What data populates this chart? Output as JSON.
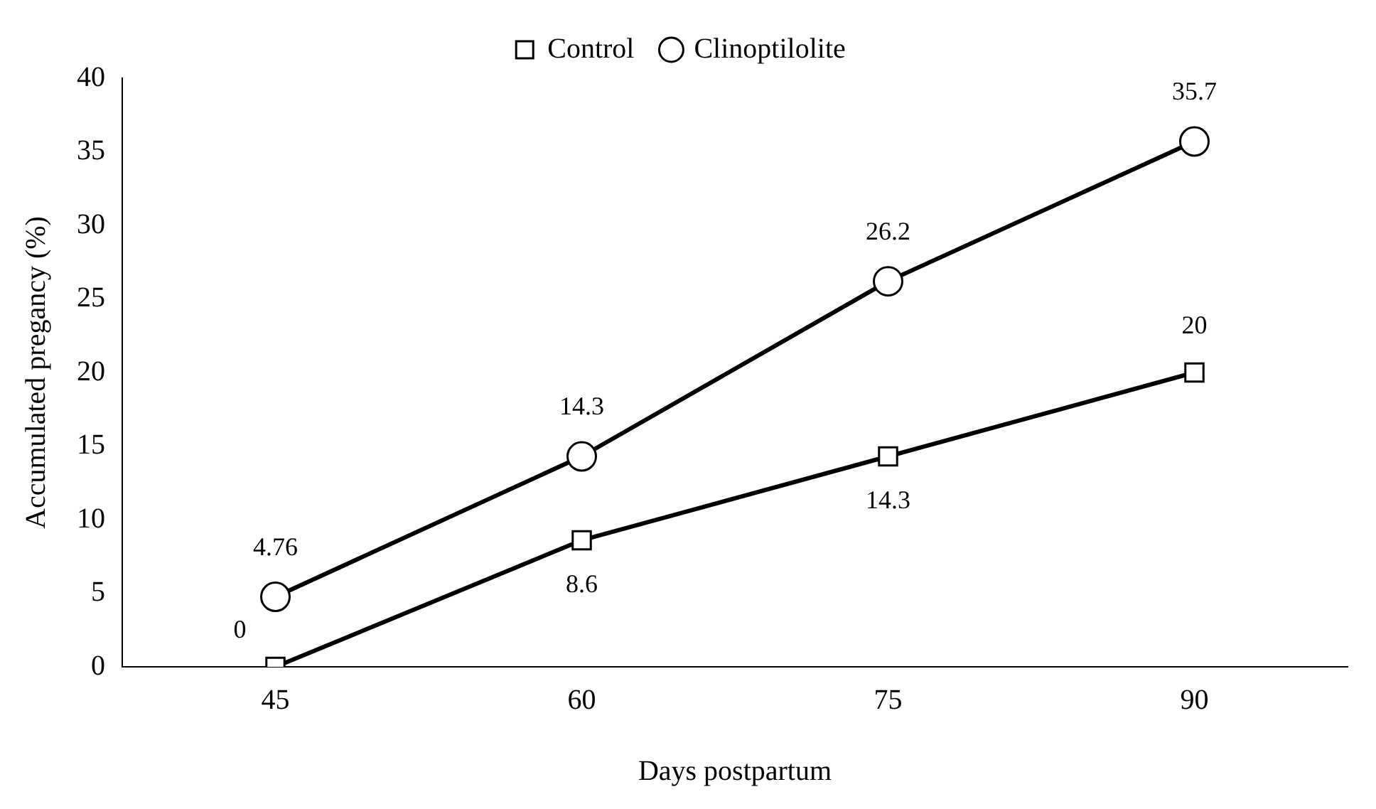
{
  "chart_data": {
    "type": "line",
    "xlabel": "Days postpartum",
    "ylabel": "Accumulated pregancy (%)",
    "categories": [
      "45",
      "60",
      "75",
      "90"
    ],
    "series": [
      {
        "name": "Control",
        "color": "#000000",
        "marker": "square",
        "values": [
          0,
          8.6,
          14.3,
          20
        ]
      },
      {
        "name": "Clinoptilolite",
        "color": "#000000",
        "marker": "circle",
        "values": [
          4.76,
          14.3,
          26.2,
          35.7
        ]
      }
    ],
    "ylim": [
      0,
      40
    ],
    "yticks": [
      0,
      5,
      10,
      15,
      20,
      25,
      30,
      35,
      40
    ],
    "grid": false,
    "legend": "top",
    "data_labels": true,
    "line_style": "solid"
  }
}
